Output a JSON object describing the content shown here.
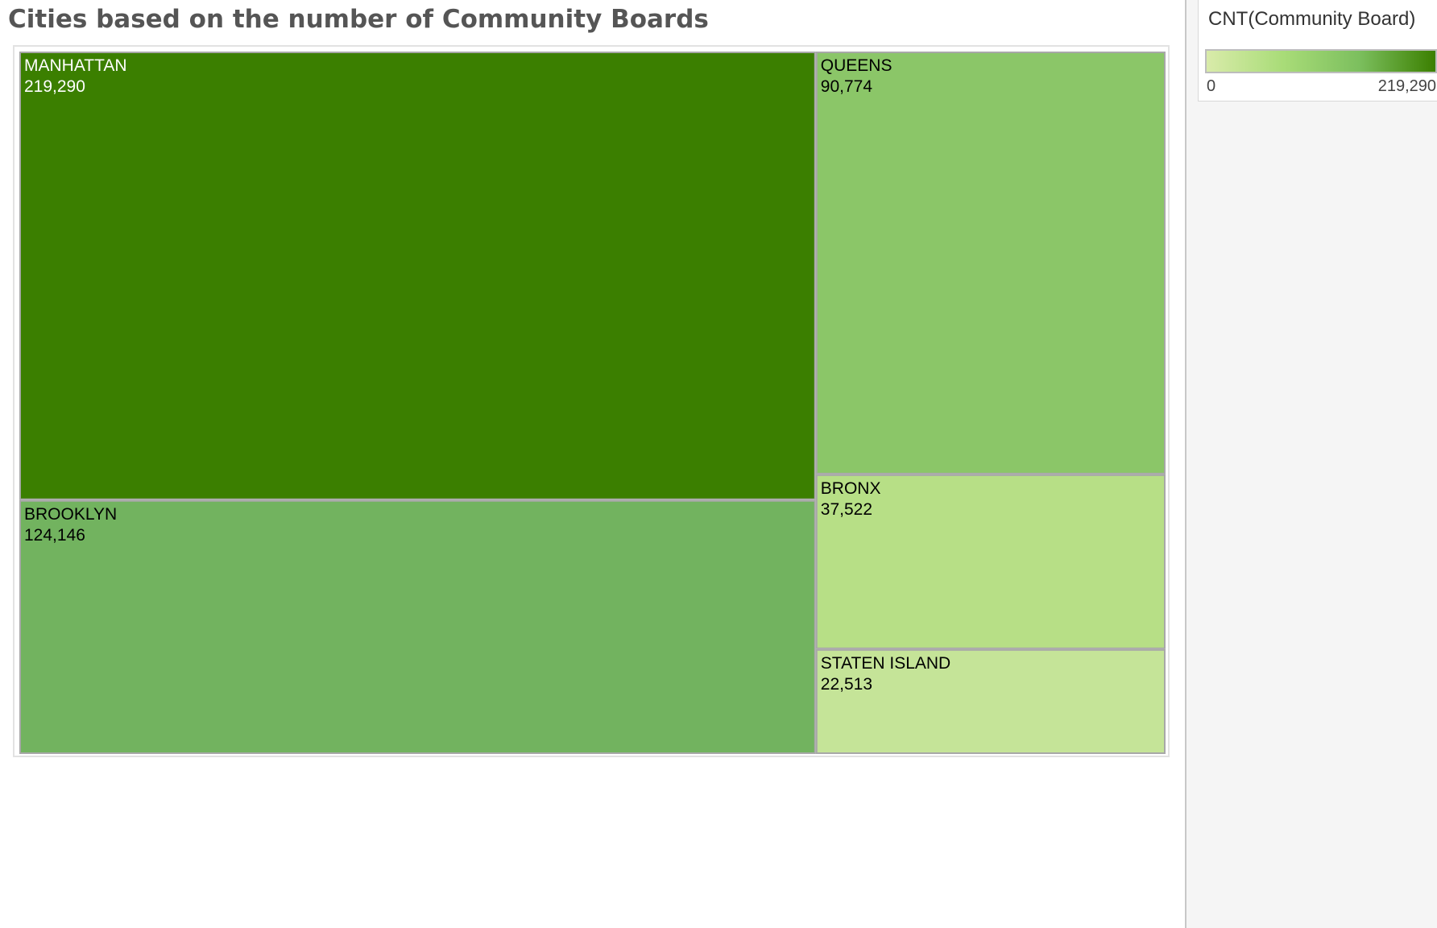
{
  "chart_data": {
    "type": "treemap",
    "title": "Cities based on the number of Community Boards",
    "measure": "CNT(Community Board)",
    "items": [
      {
        "name": "MANHATTAN",
        "value": 219290,
        "label": "219,290",
        "color": "#3b7f00",
        "text_color": "#ffffff"
      },
      {
        "name": "BROOKLYN",
        "value": 124146,
        "label": "124,146",
        "color": "#72b35f",
        "text_color": "#000000"
      },
      {
        "name": "QUEENS",
        "value": 90774,
        "label": "90,774",
        "color": "#8bc668",
        "text_color": "#000000"
      },
      {
        "name": "BRONX",
        "value": 37522,
        "label": "37,522",
        "color": "#b7df86",
        "text_color": "#000000"
      },
      {
        "name": "STATEN ISLAND",
        "value": 22513,
        "label": "22,513",
        "color": "#c5e498",
        "text_color": "#000000"
      }
    ],
    "color_legend": {
      "title": "CNT(Community Board)",
      "min_label": "0",
      "max_label": "219,290",
      "gradient": [
        "#d9ebaa",
        "#a9dc78",
        "#7cbf5e",
        "#3b7f00"
      ]
    }
  }
}
